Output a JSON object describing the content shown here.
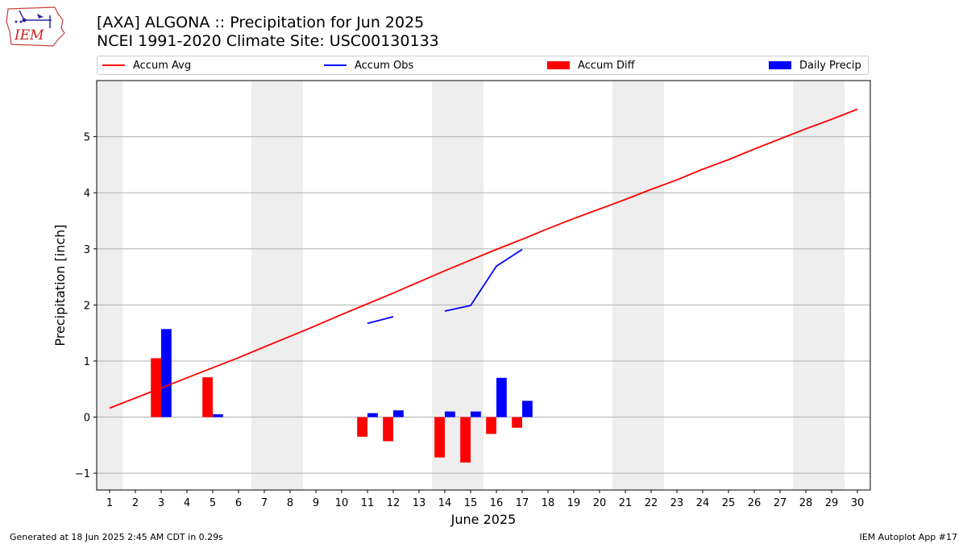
{
  "title": {
    "line1": "[AXA] ALGONA :: Precipitation for Jun 2025",
    "line2": "NCEI 1991-2020 Climate Site: USC00130133"
  },
  "logo_text": "IEM",
  "footer": {
    "left": "Generated at 18 Jun 2025 2:45 AM CDT in 0.29s",
    "right": "IEM Autoplot App #17"
  },
  "colors": {
    "accum_avg": "#ff0000",
    "accum_obs": "#0000ff",
    "accum_diff": "#ff0000",
    "daily_precip": "#0000ff",
    "weekend_shade": "#eeeeee",
    "grid": "#b0b0b0"
  },
  "chart_data": {
    "type": "bar",
    "xlabel": "June 2025",
    "ylabel": "Precipitation [inch]",
    "xlim": [
      0.5,
      30.5
    ],
    "ylim": [
      -1.3,
      6.0
    ],
    "yticks": [
      -1,
      0,
      1,
      2,
      3,
      4,
      5
    ],
    "ytick_labels": [
      "−1",
      "0",
      "1",
      "2",
      "3",
      "4",
      "5"
    ],
    "xticks": [
      1,
      2,
      3,
      4,
      5,
      6,
      7,
      8,
      9,
      10,
      11,
      12,
      13,
      14,
      15,
      16,
      17,
      18,
      19,
      20,
      21,
      22,
      23,
      24,
      25,
      26,
      27,
      28,
      29,
      30
    ],
    "grid": "y",
    "legend_position": "top",
    "shaded_days": [
      1,
      7,
      8,
      14,
      15,
      21,
      22,
      28,
      29
    ],
    "series": [
      {
        "name": "Accum Avg",
        "kind": "line",
        "x": [
          1,
          2,
          3,
          4,
          5,
          6,
          7,
          8,
          9,
          10,
          11,
          12,
          13,
          14,
          15,
          16,
          17,
          18,
          19,
          20,
          21,
          22,
          23,
          24,
          25,
          26,
          27,
          28,
          29,
          30
        ],
        "values": [
          0.16,
          0.34,
          0.52,
          0.7,
          0.88,
          1.06,
          1.25,
          1.44,
          1.63,
          1.83,
          2.02,
          2.21,
          2.41,
          2.61,
          2.8,
          2.99,
          3.17,
          3.36,
          3.54,
          3.71,
          3.88,
          4.06,
          4.23,
          4.42,
          4.59,
          4.78,
          4.96,
          5.14,
          5.31,
          5.49
        ]
      },
      {
        "name": "Accum Obs",
        "kind": "line",
        "x": [
          11,
          12,
          null,
          14,
          15,
          16,
          17
        ],
        "values": [
          1.67,
          1.79,
          null,
          1.89,
          1.99,
          2.69,
          2.99
        ]
      },
      {
        "name": "Accum Diff",
        "kind": "bar",
        "x": [
          3,
          5,
          11,
          12,
          14,
          15,
          16,
          17
        ],
        "values": [
          1.05,
          0.71,
          -0.35,
          -0.43,
          -0.72,
          -0.81,
          -0.3,
          -0.19
        ]
      },
      {
        "name": "Daily Precip",
        "kind": "bar",
        "x": [
          3,
          5,
          11,
          12,
          14,
          15,
          16,
          17
        ],
        "values": [
          1.57,
          0.05,
          0.07,
          0.12,
          0.1,
          0.1,
          0.7,
          0.29
        ]
      }
    ]
  }
}
